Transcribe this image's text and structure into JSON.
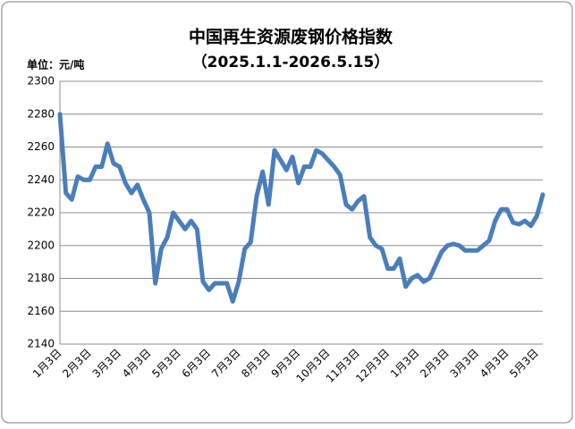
{
  "chart_data": {
    "type": "line",
    "title": "中国再生资源废钢价格指数",
    "subtitle": "（2025.1.1-2026.5.15）",
    "unit_label": "单位：元/吨",
    "categories": [
      "1月3日",
      null,
      null,
      null,
      null,
      "2月3日",
      null,
      null,
      null,
      null,
      "3月3日",
      null,
      null,
      null,
      null,
      "4月3日",
      null,
      null,
      null,
      null,
      "5月3日",
      null,
      null,
      null,
      null,
      "6月3日",
      null,
      null,
      null,
      null,
      "7月3日",
      null,
      null,
      null,
      null,
      "8月3日",
      null,
      null,
      null,
      null,
      "9月3日",
      null,
      null,
      null,
      null,
      "10月3日",
      null,
      null,
      null,
      null,
      "11月3日",
      null,
      null,
      null,
      null,
      "12月3日",
      null,
      null,
      null,
      null,
      "1月3日",
      null,
      null,
      null,
      null,
      "2月3日",
      null,
      null,
      null,
      null,
      "3月3日",
      null,
      null,
      null,
      null,
      "4月3日",
      null,
      null,
      null,
      null,
      "5月3日",
      null
    ],
    "values": [
      2280,
      2232,
      2228,
      2242,
      2240,
      2240,
      2248,
      2248,
      2262,
      2250,
      2248,
      2238,
      2232,
      2237,
      2228,
      2220,
      2177,
      2198,
      2205,
      2220,
      2215,
      2210,
      2215,
      2210,
      2178,
      2173,
      2177,
      2177,
      2177,
      2166,
      2178,
      2198,
      2202,
      2230,
      2245,
      2225,
      2258,
      2252,
      2246,
      2254,
      2238,
      2248,
      2248,
      2258,
      2256,
      2252,
      2248,
      2243,
      2225,
      2222,
      2227,
      2230,
      2205,
      2200,
      2198,
      2186,
      2186,
      2192,
      2175,
      2180,
      2182,
      2178,
      2180,
      2188,
      2196,
      2200,
      2201,
      2200,
      2197,
      2197,
      2197,
      2200,
      2203,
      2215,
      2222,
      2222,
      2214,
      2213,
      2215,
      2212,
      2218,
      2231
    ],
    "color": "#4a7ebb",
    "ylim": [
      2140,
      2300
    ],
    "yticks": [
      2140,
      2160,
      2180,
      2200,
      2220,
      2240,
      2260,
      2280,
      2300
    ],
    "grid": true
  }
}
